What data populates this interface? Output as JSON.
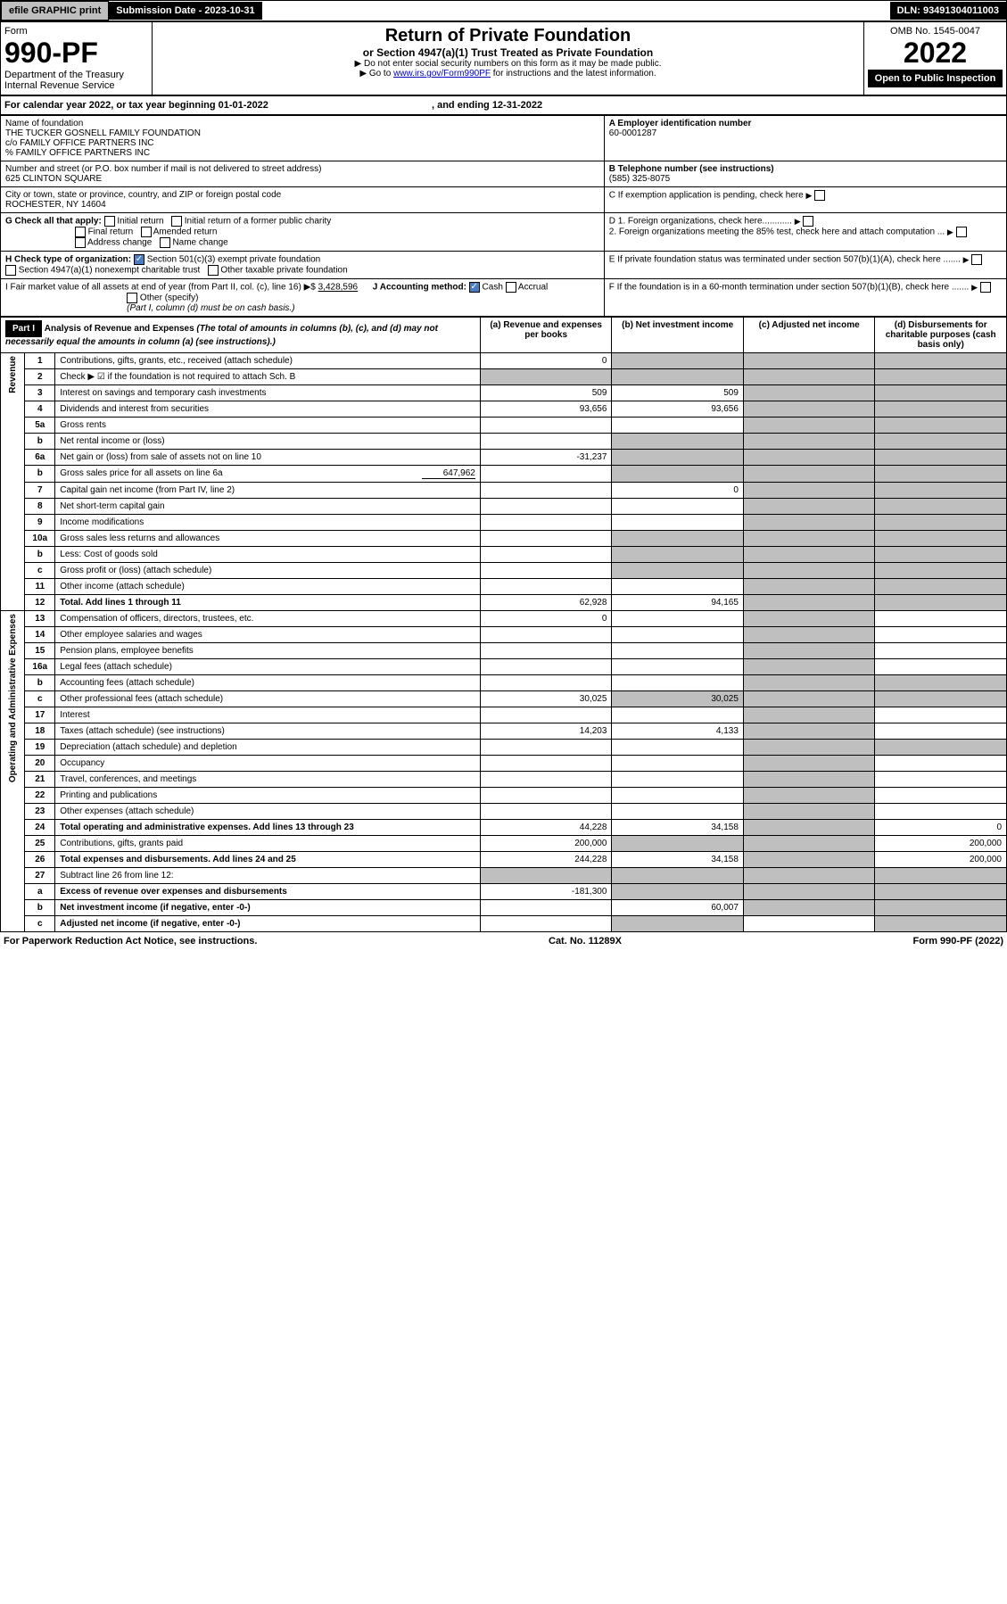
{
  "topbar": {
    "efile": "efile GRAPHIC print",
    "submission": "Submission Date - 2023-10-31",
    "dln": "DLN: 93491304011003"
  },
  "header": {
    "form_label": "Form",
    "form_number": "990-PF",
    "dept": "Department of the Treasury",
    "irs": "Internal Revenue Service",
    "title": "Return of Private Foundation",
    "subtitle": "or Section 4947(a)(1) Trust Treated as Private Foundation",
    "note1": "▶ Do not enter social security numbers on this form as it may be made public.",
    "note2_pre": "▶ Go to ",
    "note2_link": "www.irs.gov/Form990PF",
    "note2_post": " for instructions and the latest information.",
    "omb": "OMB No. 1545-0047",
    "year": "2022",
    "inspection": "Open to Public Inspection"
  },
  "calyear": "For calendar year 2022, or tax year beginning 01-01-2022",
  "calyear_end": ", and ending 12-31-2022",
  "entity": {
    "name_label": "Name of foundation",
    "name1": "THE TUCKER GOSNELL FAMILY FOUNDATION",
    "name2": "c/o FAMILY OFFICE PARTNERS INC",
    "name3": "% FAMILY OFFICE PARTNERS INC",
    "addr_label": "Number and street (or P.O. box number if mail is not delivered to street address)",
    "addr": "625 CLINTON SQUARE",
    "room_label": "Room/suite",
    "city_label": "City or town, state or province, country, and ZIP or foreign postal code",
    "city": "ROCHESTER, NY  14604",
    "ein_label": "A Employer identification number",
    "ein": "60-0001287",
    "phone_label": "B Telephone number (see instructions)",
    "phone": "(585) 325-8075",
    "c_label": "C If exemption application is pending, check here",
    "d1_label": "D 1. Foreign organizations, check here............",
    "d2_label": "2. Foreign organizations meeting the 85% test, check here and attach computation ...",
    "e_label": "E If private foundation status was terminated under section 507(b)(1)(A), check here .......",
    "f_label": "F If the foundation is in a 60-month termination under section 507(b)(1)(B), check here .......",
    "g_label": "G Check all that apply:",
    "g_initial": "Initial return",
    "g_initial_former": "Initial return of a former public charity",
    "g_final": "Final return",
    "g_amended": "Amended return",
    "g_address": "Address change",
    "g_name": "Name change",
    "h_label": "H Check type of organization:",
    "h_501c3": "Section 501(c)(3) exempt private foundation",
    "h_4947": "Section 4947(a)(1) nonexempt charitable trust",
    "h_other": "Other taxable private foundation",
    "i_label": "I Fair market value of all assets at end of year (from Part II, col. (c), line 16) ▶$",
    "i_value": "3,428,596",
    "j_label": "J Accounting method:",
    "j_cash": "Cash",
    "j_accrual": "Accrual",
    "j_other": "Other (specify)",
    "j_note": "(Part I, column (d) must be on cash basis.)"
  },
  "part1": {
    "label": "Part I",
    "title": "Analysis of Revenue and Expenses",
    "title_note": "(The total of amounts in columns (b), (c), and (d) may not necessarily equal the amounts in column (a) (see instructions).)",
    "col_a": "(a) Revenue and expenses per books",
    "col_b": "(b) Net investment income",
    "col_c": "(c) Adjusted net income",
    "col_d": "(d) Disbursements for charitable purposes (cash basis only)"
  },
  "sections": {
    "revenue": "Revenue",
    "expenses": "Operating and Administrative Expenses"
  },
  "rows": [
    {
      "n": "1",
      "d": "Contributions, gifts, grants, etc., received (attach schedule)",
      "a": "0"
    },
    {
      "n": "2",
      "d": "Check ▶ ☑ if the foundation is not required to attach Sch. B"
    },
    {
      "n": "3",
      "d": "Interest on savings and temporary cash investments",
      "a": "509",
      "b": "509"
    },
    {
      "n": "4",
      "d": "Dividends and interest from securities",
      "a": "93,656",
      "b": "93,656"
    },
    {
      "n": "5a",
      "d": "Gross rents"
    },
    {
      "n": "b",
      "d": "Net rental income or (loss)"
    },
    {
      "n": "6a",
      "d": "Net gain or (loss) from sale of assets not on line 10",
      "a": "-31,237"
    },
    {
      "n": "b",
      "d": "Gross sales price for all assets on line 6a",
      "sub": "647,962"
    },
    {
      "n": "7",
      "d": "Capital gain net income (from Part IV, line 2)",
      "b": "0"
    },
    {
      "n": "8",
      "d": "Net short-term capital gain"
    },
    {
      "n": "9",
      "d": "Income modifications"
    },
    {
      "n": "10a",
      "d": "Gross sales less returns and allowances"
    },
    {
      "n": "b",
      "d": "Less: Cost of goods sold"
    },
    {
      "n": "c",
      "d": "Gross profit or (loss) (attach schedule)"
    },
    {
      "n": "11",
      "d": "Other income (attach schedule)"
    },
    {
      "n": "12",
      "d": "Total. Add lines 1 through 11",
      "a": "62,928",
      "b": "94,165",
      "bold": true
    },
    {
      "n": "13",
      "d": "Compensation of officers, directors, trustees, etc.",
      "a": "0"
    },
    {
      "n": "14",
      "d": "Other employee salaries and wages"
    },
    {
      "n": "15",
      "d": "Pension plans, employee benefits"
    },
    {
      "n": "16a",
      "d": "Legal fees (attach schedule)"
    },
    {
      "n": "b",
      "d": "Accounting fees (attach schedule)"
    },
    {
      "n": "c",
      "d": "Other professional fees (attach schedule)",
      "a": "30,025",
      "b": "30,025"
    },
    {
      "n": "17",
      "d": "Interest"
    },
    {
      "n": "18",
      "d": "Taxes (attach schedule) (see instructions)",
      "a": "14,203",
      "b": "4,133"
    },
    {
      "n": "19",
      "d": "Depreciation (attach schedule) and depletion"
    },
    {
      "n": "20",
      "d": "Occupancy"
    },
    {
      "n": "21",
      "d": "Travel, conferences, and meetings"
    },
    {
      "n": "22",
      "d": "Printing and publications"
    },
    {
      "n": "23",
      "d": "Other expenses (attach schedule)"
    },
    {
      "n": "24",
      "d": "Total operating and administrative expenses. Add lines 13 through 23",
      "a": "44,228",
      "b": "34,158",
      "dd": "0",
      "bold": true
    },
    {
      "n": "25",
      "d": "Contributions, gifts, grants paid",
      "a": "200,000",
      "dd": "200,000"
    },
    {
      "n": "26",
      "d": "Total expenses and disbursements. Add lines 24 and 25",
      "a": "244,228",
      "b": "34,158",
      "dd": "200,000",
      "bold": true
    },
    {
      "n": "27",
      "d": "Subtract line 26 from line 12:"
    },
    {
      "n": "a",
      "d": "Excess of revenue over expenses and disbursements",
      "a": "-181,300",
      "bold": true
    },
    {
      "n": "b",
      "d": "Net investment income (if negative, enter -0-)",
      "b": "60,007",
      "bold": true
    },
    {
      "n": "c",
      "d": "Adjusted net income (if negative, enter -0-)",
      "bold": true
    }
  ],
  "footer": {
    "pra": "For Paperwork Reduction Act Notice, see instructions.",
    "cat": "Cat. No. 11289X",
    "form": "Form 990-PF (2022)"
  }
}
